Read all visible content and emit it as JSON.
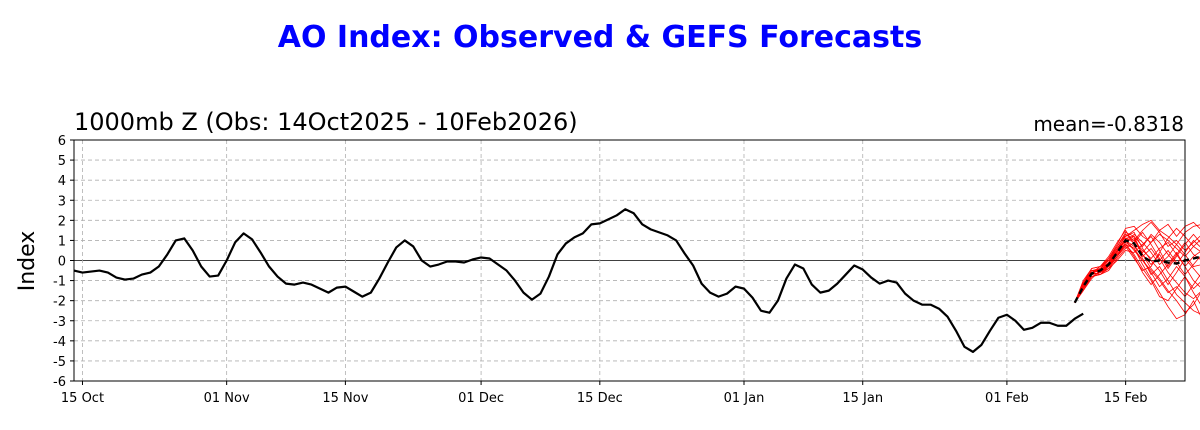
{
  "title": "AO Index: Observed & GEFS Forecasts",
  "subtitle": "1000mb Z (Obs: 14Oct2025 - 10Feb2026)",
  "mean_label": "mean=-0.8318",
  "colors": {
    "title": "#0000ff",
    "observed": "#000000",
    "members": "#ff0000",
    "ens_mean": "#000000"
  },
  "chart_data": {
    "type": "line",
    "ylabel": "Index",
    "ylim": [
      -6,
      6
    ],
    "yticks": [
      -6,
      -5,
      -4,
      -3,
      -2,
      -1,
      0,
      1,
      2,
      3,
      4,
      5,
      6
    ],
    "x_range": [
      "2025-10-14",
      "2026-02-22"
    ],
    "xticks": [
      {
        "date": "2025-10-15",
        "label": "15 Oct"
      },
      {
        "date": "2025-11-01",
        "label": "01 Nov"
      },
      {
        "date": "2025-11-15",
        "label": "15 Nov"
      },
      {
        "date": "2025-12-01",
        "label": "01 Dec"
      },
      {
        "date": "2025-12-15",
        "label": "15 Dec"
      },
      {
        "date": "2026-01-01",
        "label": "01 Jan"
      },
      {
        "date": "2026-01-15",
        "label": "15 Jan"
      },
      {
        "date": "2026-02-01",
        "label": "01 Feb"
      },
      {
        "date": "2026-02-15",
        "label": "15 Feb"
      }
    ],
    "grid": true,
    "observed": {
      "start": "2025-10-14",
      "values": [
        -0.5,
        -0.6,
        -0.55,
        -0.5,
        -0.6,
        -0.85,
        -0.95,
        -0.9,
        -0.7,
        -0.6,
        -0.3,
        0.3,
        1.0,
        1.1,
        0.5,
        -0.3,
        -0.8,
        -0.75,
        0.0,
        0.9,
        1.35,
        1.05,
        0.4,
        -0.3,
        -0.8,
        -1.15,
        -1.2,
        -1.1,
        -1.2,
        -1.4,
        -1.6,
        -1.35,
        -1.3,
        -1.55,
        -1.8,
        -1.6,
        -0.9,
        -0.1,
        0.65,
        1.0,
        0.7,
        0.0,
        -0.3,
        -0.2,
        -0.05,
        -0.05,
        -0.1,
        0.05,
        0.15,
        0.1,
        -0.2,
        -0.5,
        -1.0,
        -1.6,
        -1.95,
        -1.65,
        -0.8,
        0.3,
        0.85,
        1.15,
        1.35,
        1.8,
        1.85,
        2.05,
        2.25,
        2.55,
        2.35,
        1.8,
        1.55,
        1.4,
        1.25,
        1.0,
        0.35,
        -0.25,
        -1.15,
        -1.6,
        -1.8,
        -1.65,
        -1.3,
        -1.4,
        -1.85,
        -2.5,
        -2.6,
        -2.0,
        -0.9,
        -0.2,
        -0.4,
        -1.2,
        -1.6,
        -1.5,
        -1.15,
        -0.7,
        -0.25,
        -0.45,
        -0.85,
        -1.15,
        -1.0,
        -1.1,
        -1.65,
        -2.0,
        -2.2,
        -2.2,
        -2.4,
        -2.8,
        -3.5,
        -4.3,
        -4.55,
        -4.2,
        -3.5,
        -2.85,
        -2.7,
        -3.0,
        -3.45,
        -3.35,
        -3.1,
        -3.1,
        -3.25,
        -3.25,
        -2.9,
        -2.65
      ]
    },
    "forecast_mean": {
      "start": "2026-02-09",
      "values": [
        -2.1,
        -1.3,
        -0.65,
        -0.5,
        -0.2,
        0.4,
        1.0,
        0.85,
        0.2,
        -0.05,
        0.0,
        -0.1,
        -0.15,
        0.0,
        0.1,
        0.2
      ]
    },
    "members": [
      [
        -2.1,
        -1.0,
        -0.4,
        -0.3,
        0.1,
        0.8,
        1.6,
        1.7,
        1.2,
        0.9,
        1.3,
        1.0,
        0.6,
        0.2,
        0.7,
        0.4
      ],
      [
        -2.1,
        -1.2,
        -0.5,
        -0.6,
        -0.3,
        0.5,
        1.3,
        1.1,
        0.3,
        -0.4,
        -0.9,
        -1.5,
        -2.0,
        -2.6,
        -2.2,
        -1.5
      ],
      [
        -2.1,
        -1.4,
        -0.8,
        -0.7,
        -0.4,
        0.2,
        0.9,
        0.6,
        -0.2,
        -0.9,
        -1.6,
        -2.3,
        -2.9,
        -2.7,
        -2.0,
        -2.9
      ],
      [
        -2.1,
        -1.3,
        -0.6,
        -0.4,
        0.0,
        0.6,
        1.2,
        1.5,
        1.8,
        2.0,
        1.5,
        1.8,
        1.2,
        1.7,
        1.9,
        1.5
      ],
      [
        -2.1,
        -1.1,
        -0.7,
        -0.6,
        -0.2,
        0.3,
        0.8,
        0.2,
        -0.6,
        -1.2,
        -0.7,
        -0.2,
        0.4,
        -0.3,
        -1.0,
        -1.4
      ],
      [
        -2.1,
        -1.5,
        -0.9,
        -0.5,
        -0.1,
        0.4,
        1.1,
        1.0,
        0.5,
        0.1,
        0.6,
        0.9,
        0.3,
        -0.3,
        0.2,
        0.5
      ],
      [
        -2.1,
        -1.2,
        -0.5,
        -0.5,
        -0.3,
        0.2,
        0.7,
        0.1,
        -0.5,
        -0.3,
        0.4,
        1.1,
        1.6,
        1.2,
        0.7,
        1.1
      ],
      [
        -2.1,
        -1.3,
        -0.6,
        -0.7,
        -0.5,
        0.1,
        0.6,
        0.9,
        1.4,
        0.8,
        0.1,
        -0.6,
        -1.1,
        -1.6,
        -1.9,
        -1.5
      ],
      [
        -2.1,
        -1.4,
        -0.7,
        -0.4,
        0.1,
        0.7,
        1.4,
        1.2,
        0.7,
        1.3,
        0.9,
        0.3,
        -0.2,
        0.4,
        1.0,
        0.6
      ],
      [
        -2.1,
        -1.2,
        -0.6,
        -0.5,
        -0.2,
        0.5,
        1.0,
        0.5,
        0.0,
        -0.6,
        -1.3,
        -0.9,
        -0.3,
        -0.8,
        -1.4,
        -1.0
      ],
      [
        -2.1,
        -1.3,
        -0.8,
        -0.6,
        -0.3,
        0.3,
        0.9,
        1.3,
        0.9,
        0.4,
        -0.2,
        0.2,
        0.8,
        1.4,
        1.7,
        1.8
      ],
      [
        -2.1,
        -1.1,
        -0.4,
        -0.3,
        0.2,
        0.9,
        1.5,
        0.8,
        0.1,
        -0.7,
        -0.3,
        -1.0,
        -1.7,
        -2.1,
        -2.5,
        -2.7
      ],
      [
        -2.1,
        -1.4,
        -0.7,
        -0.6,
        -0.4,
        0.0,
        0.5,
        0.4,
        0.8,
        1.2,
        0.5,
        -0.3,
        0.3,
        0.9,
        0.3,
        0.0
      ],
      [
        -2.1,
        -1.2,
        -0.5,
        -0.4,
        -0.1,
        0.6,
        1.2,
        1.4,
        0.6,
        0.0,
        -0.5,
        -1.2,
        -0.6,
        0.1,
        -0.4,
        -0.9
      ],
      [
        -2.1,
        -1.3,
        -0.6,
        -0.5,
        -0.2,
        0.4,
        1.1,
        0.9,
        0.4,
        0.9,
        1.5,
        1.2,
        0.8,
        0.3,
        -0.3,
        -0.2
      ],
      [
        -2.1,
        -1.5,
        -0.8,
        -0.7,
        -0.3,
        0.2,
        0.8,
        0.6,
        0.0,
        -0.5,
        -1.0,
        -1.6,
        -1.3,
        -1.8,
        -1.2,
        -0.6
      ],
      [
        -2.1,
        -1.2,
        -0.6,
        -0.3,
        0.0,
        0.7,
        1.3,
        1.0,
        1.5,
        1.9,
        1.4,
        0.7,
        1.0,
        0.5,
        0.9,
        1.3
      ],
      [
        -2.1,
        -1.3,
        -0.7,
        -0.6,
        -0.2,
        0.3,
        0.8,
        0.3,
        -0.4,
        -1.0,
        -1.8,
        -2.0,
        -1.4,
        -0.8,
        -1.6,
        -2.3
      ],
      [
        -2.1,
        -1.1,
        -0.5,
        -0.5,
        -0.1,
        0.5,
        1.1,
        1.2,
        0.3,
        -0.2,
        0.3,
        -0.4,
        0.2,
        0.8,
        1.3,
        0.8
      ],
      [
        -2.1,
        -1.4,
        -0.6,
        -0.4,
        -0.3,
        0.4,
        1.0,
        0.7,
        0.2,
        0.6,
        0.0,
        0.5,
        -0.1,
        -0.7,
        -0.2,
        0.3
      ]
    ]
  }
}
